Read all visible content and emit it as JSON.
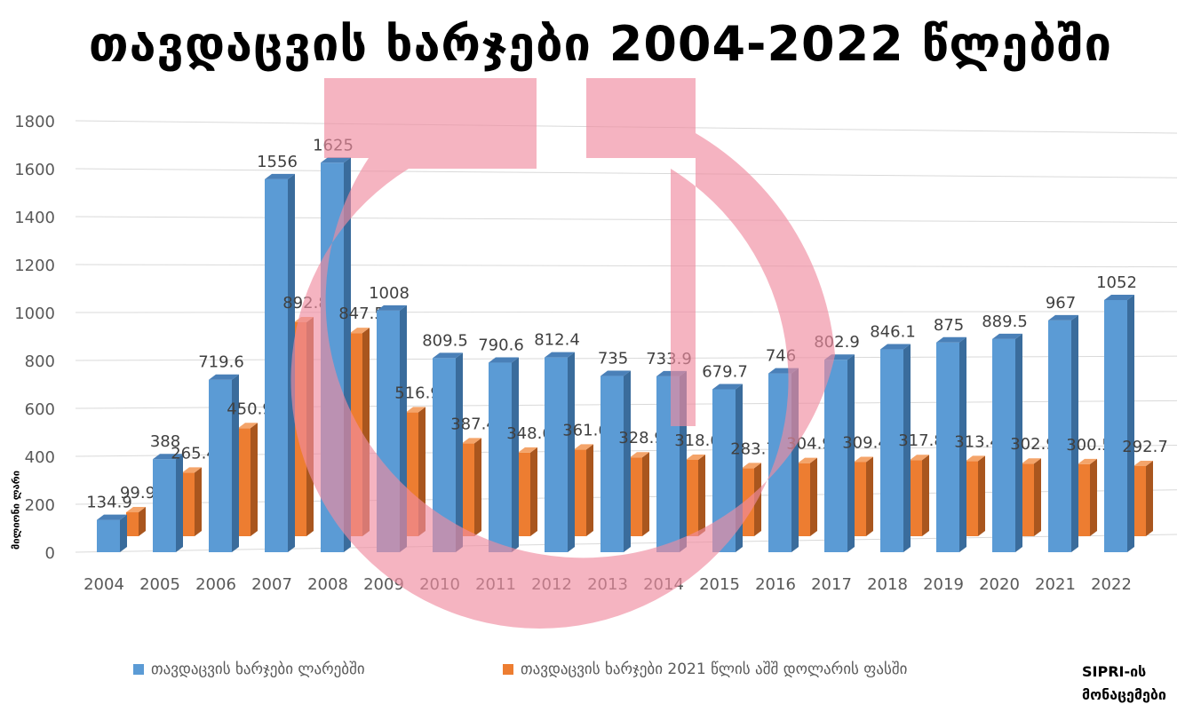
{
  "title": "თავდაცვის ხარჯები 2004-2022 წლებში",
  "source": [
    "SIPRI-ის",
    "მონაცემები"
  ],
  "chart_data": {
    "type": "bar",
    "title": "თავდაცვის ხარჯები 2004-2022 წლებში",
    "ylabel": "მილიონი ლარი",
    "xlabel": "",
    "ylim": [
      0,
      1800
    ],
    "yticks": [
      0,
      200,
      400,
      600,
      800,
      1000,
      1200,
      1400,
      1600,
      1800
    ],
    "grid": true,
    "legend_position": "bottom",
    "categories": [
      "2004",
      "2005",
      "2006",
      "2007",
      "2008",
      "2009",
      "2010",
      "2011",
      "2012",
      "2013",
      "2014",
      "2015",
      "2016",
      "2017",
      "2018",
      "2019",
      "2020",
      "2021",
      "2022"
    ],
    "series": [
      {
        "name": "თავდაცვის ხარჯები ლარებში",
        "color": "#5B9BD5",
        "values": [
          134.9,
          388,
          719.6,
          1556,
          1625,
          1008,
          809.5,
          790.6,
          812.4,
          735,
          733.9,
          679.7,
          746,
          802.9,
          846.1,
          875,
          889.5,
          967,
          1052
        ]
      },
      {
        "name": "თავდაცვის ხარჯები 2021 წლის აშშ დოლარის ფასში",
        "color": "#ED7D31",
        "values": [
          99.9,
          265.4,
          450.9,
          892.8,
          847.5,
          516.9,
          387.4,
          348.6,
          361.6,
          328.9,
          318.6,
          283.7,
          304.9,
          309.4,
          317.8,
          313.4,
          302.9,
          300.5,
          292.7
        ]
      }
    ]
  },
  "watermark_color": "#F08CA0"
}
